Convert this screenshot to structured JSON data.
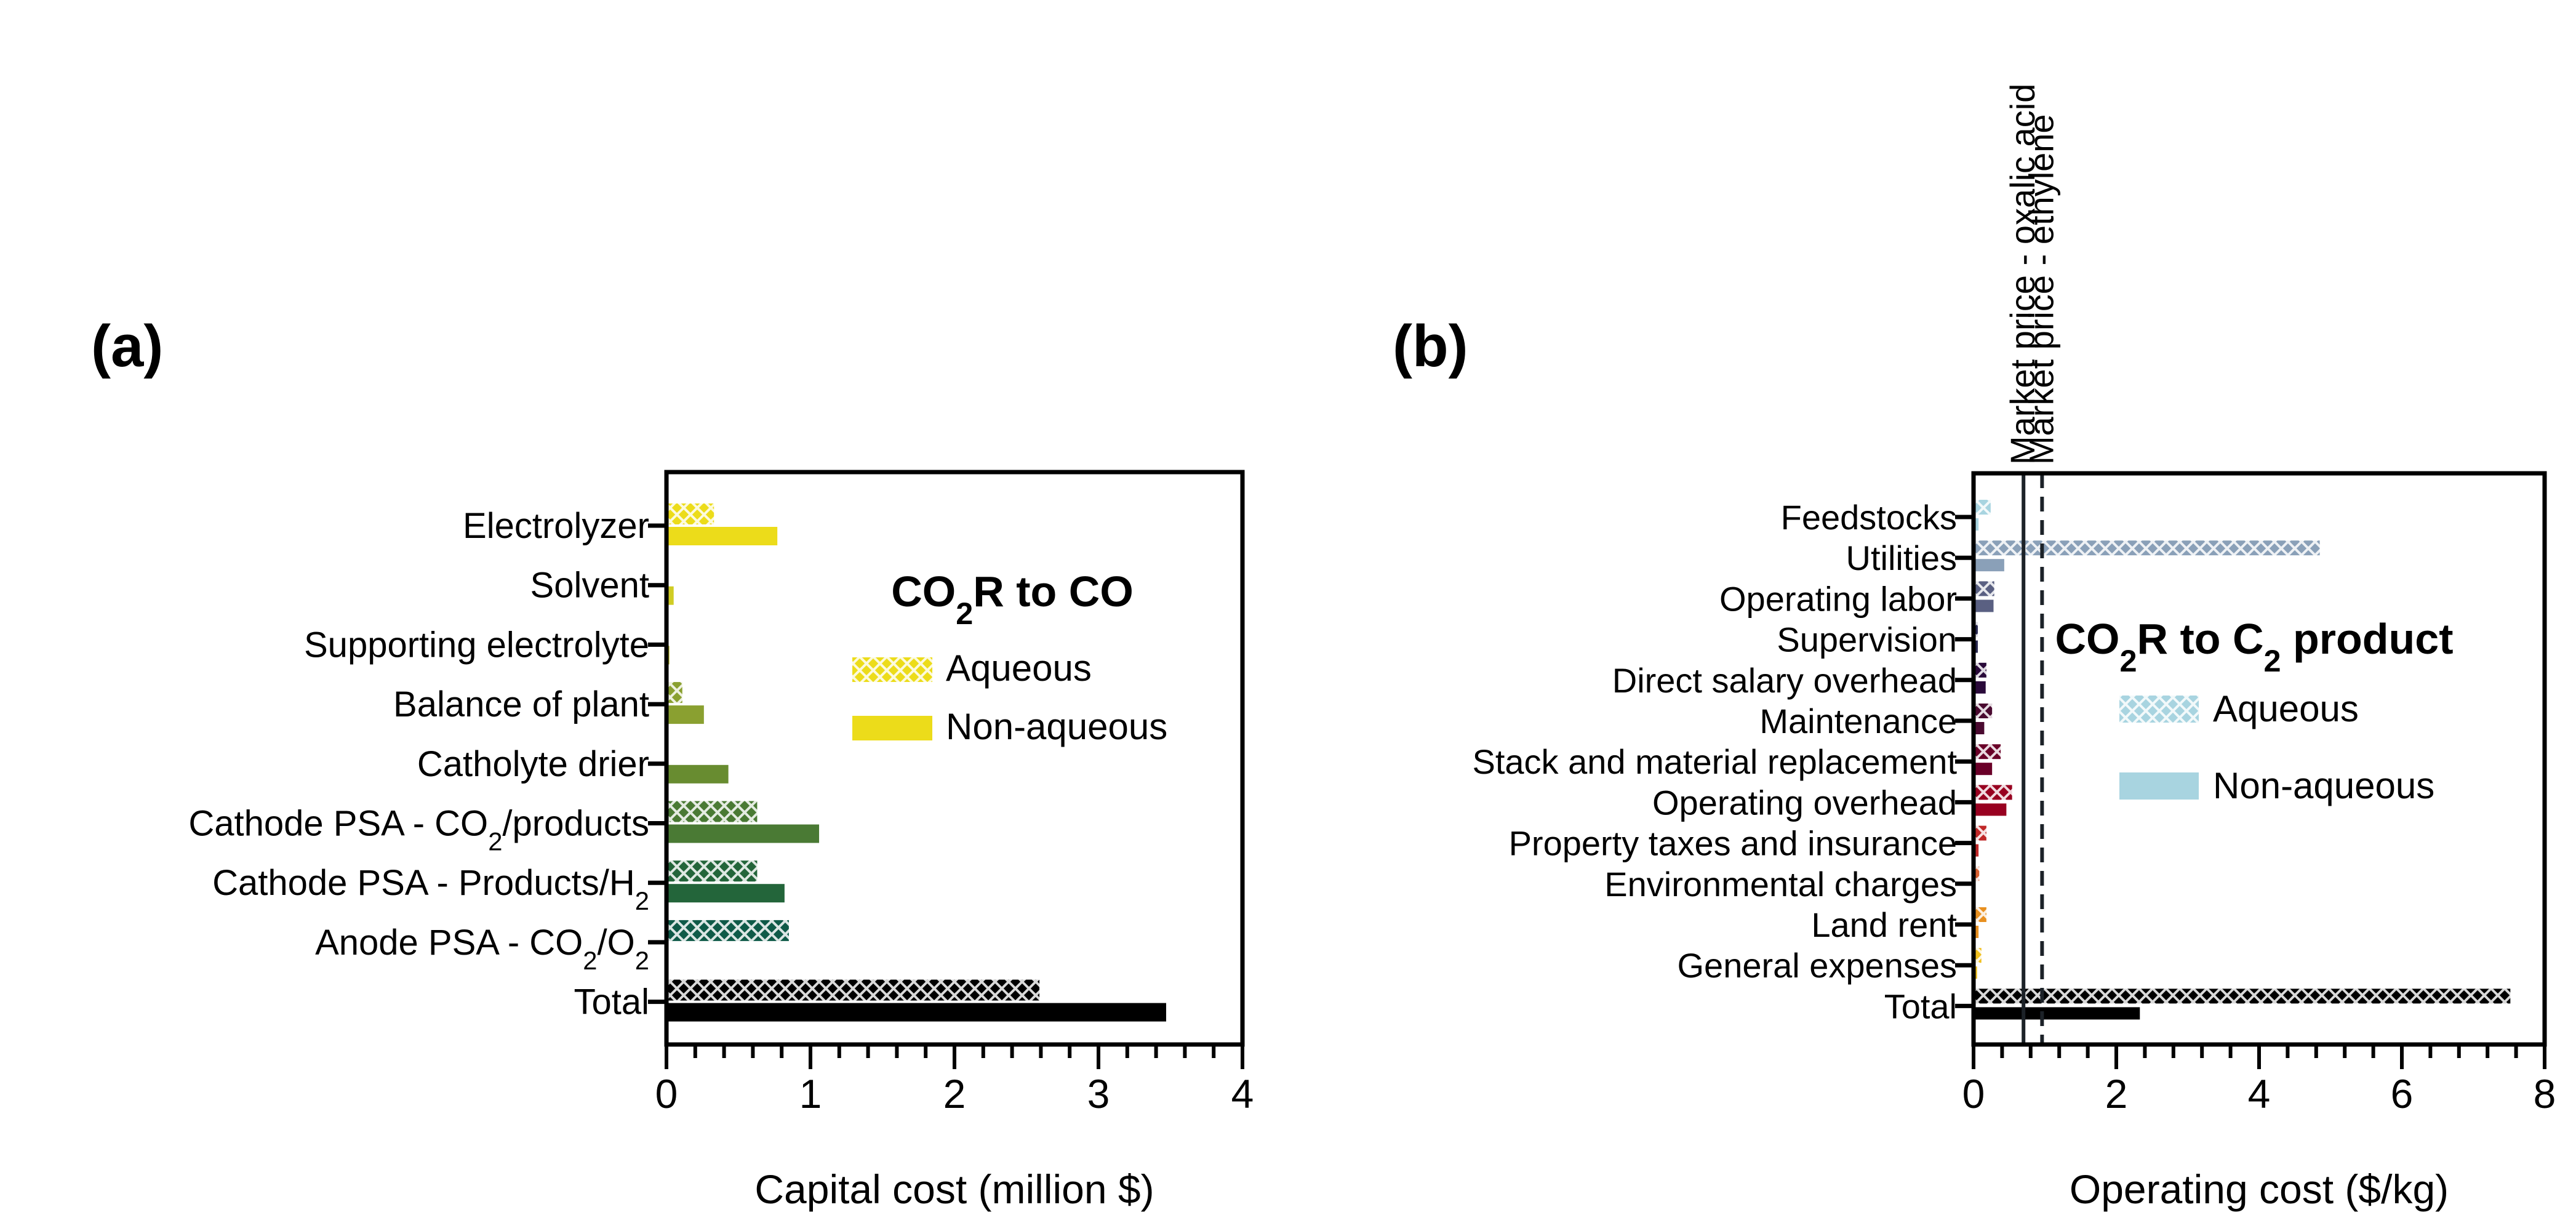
{
  "chart_data": [
    {
      "id": "a",
      "type": "bar",
      "orientation": "horizontal",
      "panel_label": "(a)",
      "title": "",
      "xlabel": "Capital cost (million $)",
      "ylabel": "",
      "xlim": [
        0,
        4
      ],
      "xticks": [
        0,
        1,
        2,
        3,
        4
      ],
      "xtick_labels": [
        "0",
        "1",
        "2",
        "3",
        "4"
      ],
      "minor_ticks_per_major": 5,
      "grid": false,
      "legend": {
        "title": "CO₂R to CO",
        "title_parts": [
          {
            "t": "CO"
          },
          {
            "t": "2",
            "sub": true
          },
          {
            "t": "R to CO"
          }
        ],
        "placement": "right",
        "entries": [
          {
            "label": "Aqueous",
            "style": "hatched",
            "color": "#ecdc1a"
          },
          {
            "label": "Non-aqueous",
            "style": "solid",
            "color": "#ecdc1a"
          }
        ]
      },
      "categories": [
        {
          "label": "Electrolyzer",
          "parts": [
            {
              "t": "Electrolyzer"
            }
          ],
          "color": "#ecdc1a"
        },
        {
          "label": "Solvent",
          "parts": [
            {
              "t": "Solvent"
            }
          ],
          "color": "#d0cc24"
        },
        {
          "label": "Supporting electrolyte",
          "parts": [
            {
              "t": "Supporting electrolyte"
            }
          ],
          "color": "#b4b41e"
        },
        {
          "label": "Balance of plant",
          "parts": [
            {
              "t": "Balance of plant"
            }
          ],
          "color": "#8aa030"
        },
        {
          "label": "Catholyte drier",
          "parts": [
            {
              "t": "Catholyte drier"
            }
          ],
          "color": "#688c30"
        },
        {
          "label": "Cathode PSA - CO2/products",
          "parts": [
            {
              "t": "Cathode PSA - CO"
            },
            {
              "t": "2",
              "sub": true
            },
            {
              "t": "/products"
            }
          ],
          "color": "#4a7a34"
        },
        {
          "label": "Cathode PSA - Products/H2",
          "parts": [
            {
              "t": "Cathode PSA - Products/H"
            },
            {
              "t": "2",
              "sub": true
            }
          ],
          "color": "#23653a"
        },
        {
          "label": "Anode PSA - CO2/O2",
          "parts": [
            {
              "t": "Anode PSA - CO"
            },
            {
              "t": "2",
              "sub": true
            },
            {
              "t": "/O"
            },
            {
              "t": "2",
              "sub": true
            }
          ],
          "color": "#0f5a48"
        },
        {
          "label": "Total",
          "parts": [
            {
              "t": "Total"
            }
          ],
          "color": "#000000"
        }
      ],
      "series": [
        {
          "name": "Aqueous",
          "style": "hatched",
          "values": [
            0.33,
            0.0,
            0.0,
            0.11,
            0.0,
            0.63,
            0.63,
            0.85,
            2.59
          ]
        },
        {
          "name": "Non-aqueous",
          "style": "solid",
          "values": [
            0.77,
            0.05,
            0.02,
            0.26,
            0.43,
            1.06,
            0.82,
            0.0,
            3.47
          ]
        }
      ]
    },
    {
      "id": "b",
      "type": "bar",
      "orientation": "horizontal",
      "panel_label": "(b)",
      "title": "",
      "xlabel": "Operating cost ($/kg)",
      "ylabel": "",
      "xlim": [
        0,
        8
      ],
      "xticks": [
        0,
        2,
        4,
        6,
        8
      ],
      "xtick_labels": [
        "0",
        "2",
        "4",
        "6",
        "8"
      ],
      "minor_ticks_per_major": 5,
      "grid": false,
      "legend": {
        "title": "CO₂R to C₂ product",
        "title_parts": [
          {
            "t": "CO"
          },
          {
            "t": "2",
            "sub": true
          },
          {
            "t": "R to C"
          },
          {
            "t": "2",
            "sub": true
          },
          {
            "t": " product"
          }
        ],
        "placement": "right",
        "entries": [
          {
            "label": "Aqueous",
            "style": "hatched",
            "color": "#a8d4e0"
          },
          {
            "label": "Non-aqueous",
            "style": "solid",
            "color": "#a8d4e0"
          }
        ]
      },
      "reference_lines": [
        {
          "label": "Market price - oxalic acid",
          "x": 0.7,
          "style": "solid",
          "color": "#1c2228"
        },
        {
          "label": "Market price - ethylene",
          "x": 0.96,
          "style": "dashed",
          "color": "#1c2228"
        }
      ],
      "categories": [
        {
          "label": "Feedstocks",
          "parts": [
            {
              "t": "Feedstocks"
            }
          ],
          "color": "#a8d4e0"
        },
        {
          "label": "Utilities",
          "parts": [
            {
              "t": "Utilities"
            }
          ],
          "color": "#8aa0b8"
        },
        {
          "label": "Operating labor",
          "parts": [
            {
              "t": "Operating labor"
            }
          ],
          "color": "#5a6082"
        },
        {
          "label": "Supervision",
          "parts": [
            {
              "t": "Supervision"
            }
          ],
          "color": "#2a2a52"
        },
        {
          "label": "Direct salary overhead",
          "parts": [
            {
              "t": "Direct salary overhead"
            }
          ],
          "color": "#2a0a3a"
        },
        {
          "label": "Maintenance",
          "parts": [
            {
              "t": "Maintenance"
            }
          ],
          "color": "#4a0a30"
        },
        {
          "label": "Stack and material replacement",
          "parts": [
            {
              "t": "Stack and material replacement"
            }
          ],
          "color": "#6a0028"
        },
        {
          "label": "Operating overhead",
          "parts": [
            {
              "t": "Operating overhead"
            }
          ],
          "color": "#980020"
        },
        {
          "label": "Property taxes and insurance",
          "parts": [
            {
              "t": "Property taxes and insurance"
            }
          ],
          "color": "#c02828"
        },
        {
          "label": "Environmental charges",
          "parts": [
            {
              "t": "Environmental charges"
            }
          ],
          "color": "#d86030"
        },
        {
          "label": "Land rent",
          "parts": [
            {
              "t": "Land rent"
            }
          ],
          "color": "#e89020"
        },
        {
          "label": "General expenses",
          "parts": [
            {
              "t": "General expenses"
            }
          ],
          "color": "#f0c020"
        },
        {
          "label": "Total",
          "parts": [
            {
              "t": "Total"
            }
          ],
          "color": "#000000"
        }
      ],
      "series": [
        {
          "name": "Aqueous",
          "style": "hatched",
          "values": [
            0.24,
            4.85,
            0.29,
            0.06,
            0.18,
            0.26,
            0.38,
            0.54,
            0.18,
            0.08,
            0.18,
            0.11,
            7.52
          ]
        },
        {
          "name": "Non-aqueous",
          "style": "solid",
          "values": [
            0.07,
            0.43,
            0.28,
            0.06,
            0.17,
            0.15,
            0.26,
            0.46,
            0.07,
            0.0,
            0.07,
            0.05,
            2.33
          ]
        }
      ]
    }
  ]
}
